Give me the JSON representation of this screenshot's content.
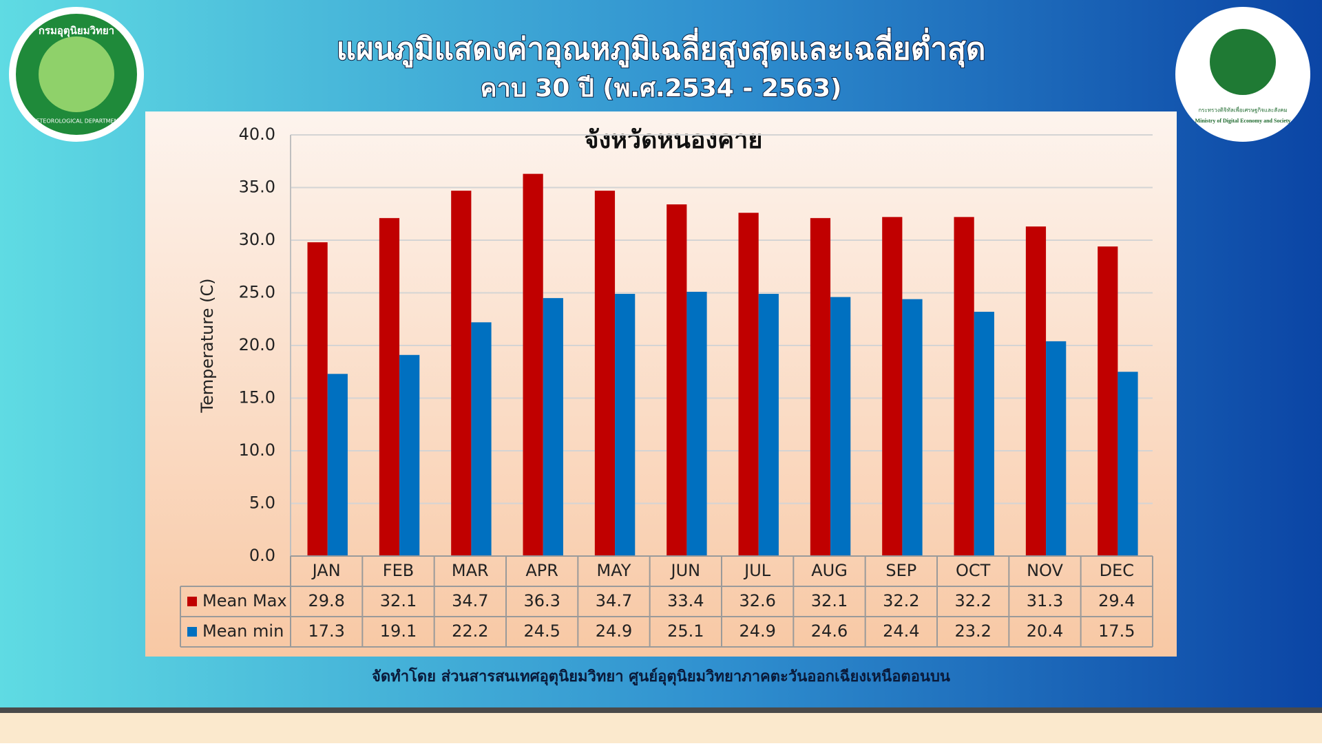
{
  "header": {
    "title": "แผนภูมิแสดงค่าอุณหภูมิเฉลี่ยสูงสุดและเฉลี่ยต่ำสุด",
    "subtitle": "คาบ 30 ปี (พ.ศ.2534 - 2563)"
  },
  "logos": {
    "left": {
      "thai": "กรมอุตุนิยมวิทยา",
      "english": "METEOROLOGICAL DEPARTMENT"
    },
    "right": {
      "thai": "กระทรวงดิจิทัลเพื่อเศรษฐกิจและสังคม",
      "english": "Ministry of Digital Economy and Society"
    }
  },
  "chart_data": {
    "type": "bar",
    "title": "จังหวัดหนองคาย",
    "y_label": "Temperature (C)",
    "categories": [
      "JAN",
      "FEB",
      "MAR",
      "APR",
      "MAY",
      "JUN",
      "JUL",
      "AUG",
      "SEP",
      "OCT",
      "NOV",
      "DEC"
    ],
    "series": [
      {
        "name": "Mean Max",
        "color": "#c00000",
        "values": [
          29.8,
          32.1,
          34.7,
          36.3,
          34.7,
          33.4,
          32.6,
          32.1,
          32.2,
          32.2,
          31.3,
          29.4
        ]
      },
      {
        "name": "Mean min",
        "color": "#0070c0",
        "values": [
          17.3,
          19.1,
          22.2,
          24.5,
          24.9,
          25.1,
          24.9,
          24.6,
          24.4,
          23.2,
          20.4,
          17.5
        ]
      }
    ],
    "ylim": [
      0,
      40
    ],
    "yticks": [
      {
        "value": 0,
        "label": "0.0"
      },
      {
        "value": 5,
        "label": "5.0"
      },
      {
        "value": 10,
        "label": "10.0"
      },
      {
        "value": 15,
        "label": "15.0"
      },
      {
        "value": 20,
        "label": "20.0"
      },
      {
        "value": 25,
        "label": "25.0"
      },
      {
        "value": 30,
        "label": "30.0"
      },
      {
        "value": 35,
        "label": "35.0"
      },
      {
        "value": 40,
        "label": "40.0"
      }
    ],
    "grid": true,
    "data_table": true
  },
  "footer": "จัดทำโดย ส่วนสารสนเทศอุตุนิยมวิทยา ศูนย์อุตุนิยมวิทยาภาคตะวันออกเฉียงเหนือตอนบน"
}
